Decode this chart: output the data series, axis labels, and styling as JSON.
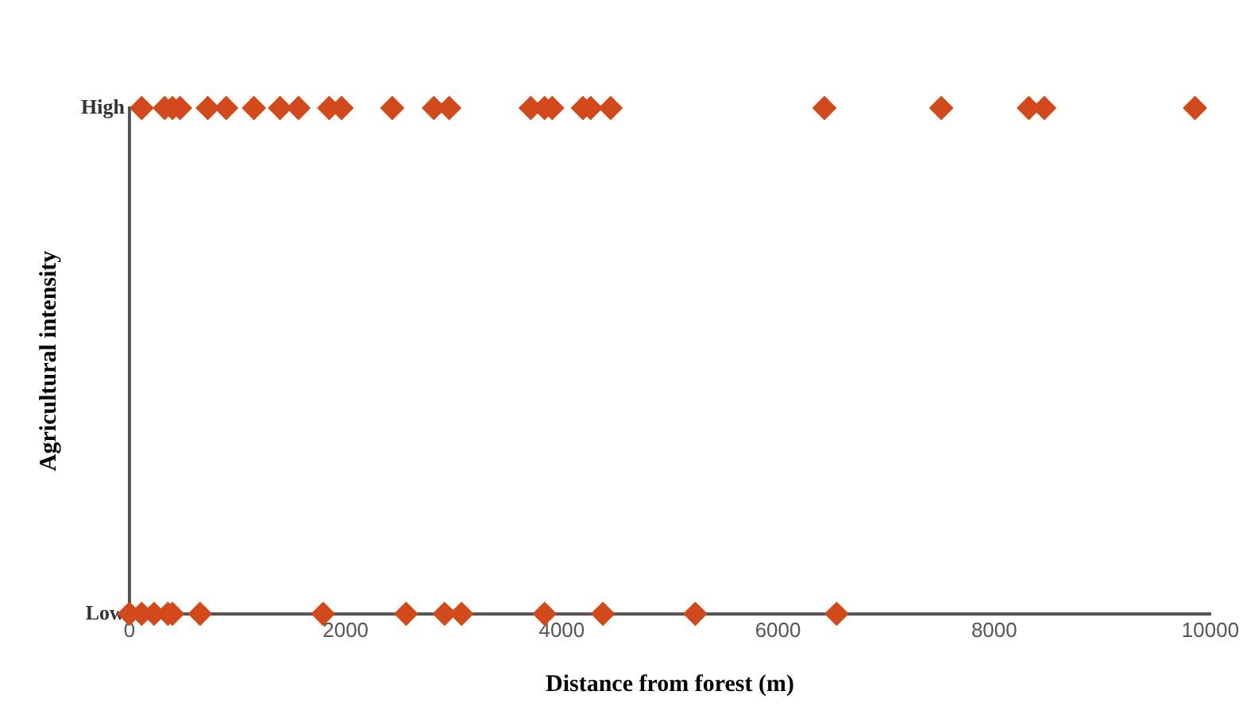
{
  "chart_data": {
    "type": "scatter",
    "orientation": "horizontal",
    "xlabel": "Distance from forest (m)",
    "ylabel": "Agricultural intensity",
    "xlim": [
      0,
      10000
    ],
    "xticks": [
      0,
      2000,
      4000,
      6000,
      8000,
      10000
    ],
    "categories": [
      "High",
      "Low"
    ],
    "marker": "diamond",
    "series": [
      {
        "color": "#d2491c",
        "values": [
          114,
          0
        ]
      },
      {
        "color": "#d2491c",
        "values": [
          327,
          114
        ]
      },
      {
        "color": "#d2491c",
        "values": [
          398,
          228
        ]
      },
      {
        "color": "#d2491c",
        "values": [
          469,
          356
        ]
      },
      {
        "color": "#d2491c",
        "values": [
          725,
          398
        ]
      },
      {
        "color": "#d2491c",
        "values": [
          896,
          654
        ]
      },
      {
        "color": "#d2491c",
        "values": [
          1152,
          1792
        ]
      },
      {
        "color": "#d2491c",
        "values": [
          1394,
          2560
        ]
      },
      {
        "color": "#d2491c",
        "values": [
          1565,
          2916
        ]
      },
      {
        "color": "#d2491c",
        "values": [
          1849,
          3073
        ]
      },
      {
        "color": "#d2491c",
        "values": [
          1963,
          3841
        ]
      },
      {
        "color": "#d2491c",
        "values": [
          2432,
          4381
        ]
      },
      {
        "color": "#d2491c",
        "values": [
          2817,
          5235
        ]
      },
      {
        "color": "#d2491c",
        "values": [
          2959,
          6543
        ]
      },
      {
        "color": "#d2491c",
        "values": [
          3713,
          null
        ]
      },
      {
        "color": "#d2491c",
        "values": [
          3841,
          null
        ]
      },
      {
        "color": "#d2491c",
        "values": [
          3912,
          null
        ]
      },
      {
        "color": "#d2491c",
        "values": [
          4196,
          null
        ]
      },
      {
        "color": "#d2491c",
        "values": [
          4267,
          null
        ]
      },
      {
        "color": "#d2491c",
        "values": [
          4452,
          null
        ]
      },
      {
        "color": "#d2491c",
        "values": [
          6430,
          null
        ]
      },
      {
        "color": "#d2491c",
        "values": [
          7511,
          null
        ]
      },
      {
        "color": "#d2491c",
        "values": [
          8321,
          null
        ]
      },
      {
        "color": "#d2491c",
        "values": [
          8464,
          null
        ]
      },
      {
        "color": "#d2491c",
        "values": [
          9858,
          null
        ]
      }
    ]
  }
}
